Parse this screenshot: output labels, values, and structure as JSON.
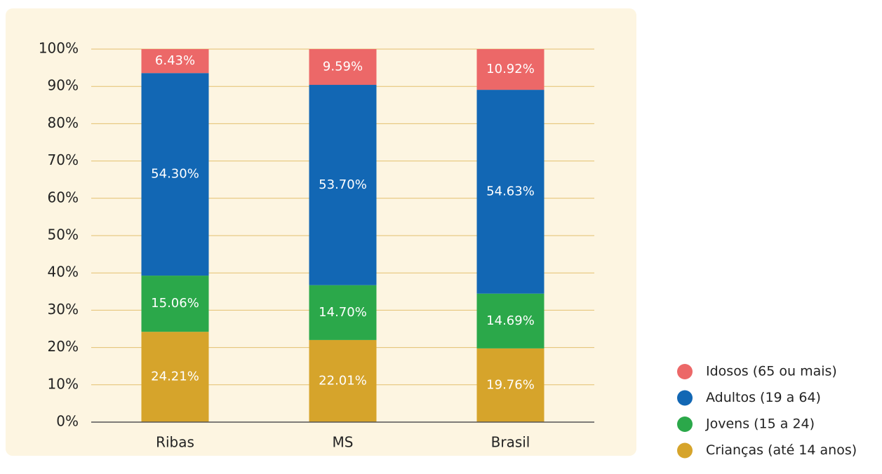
{
  "chart_data": {
    "type": "stacked_bar",
    "categories": [
      "Ribas",
      "MS",
      "Brasil"
    ],
    "series": [
      {
        "name": "Crianças (até 14 anos)",
        "color": "#d6a42b",
        "values": [
          24.21,
          22.01,
          19.76
        ],
        "value_labels": [
          "24.21%",
          "22.01%",
          "19.76%"
        ]
      },
      {
        "name": "Jovens (15 a 24)",
        "color": "#2ba84a",
        "values": [
          15.06,
          14.7,
          14.69
        ],
        "value_labels": [
          "15.06%",
          "14.70%",
          "14.69%"
        ]
      },
      {
        "name": "Adultos (19 a 64)",
        "color": "#1267b4",
        "values": [
          54.3,
          53.7,
          54.63
        ],
        "value_labels": [
          "54.30%",
          "53.70%",
          "54.63%"
        ]
      },
      {
        "name": "Idosos (65 ou mais)",
        "color": "#ec6868",
        "values": [
          6.43,
          9.59,
          10.92
        ],
        "value_labels": [
          "6.43%",
          "9.59%",
          "10.92%"
        ]
      }
    ],
    "ylim": [
      0,
      100
    ],
    "yticks": [
      {
        "value": 0,
        "label": "0%"
      },
      {
        "value": 10,
        "label": "10%"
      },
      {
        "value": 20,
        "label": "20%"
      },
      {
        "value": 30,
        "label": "30%"
      },
      {
        "value": 40,
        "label": "40%"
      },
      {
        "value": 50,
        "label": "50%"
      },
      {
        "value": 60,
        "label": "60%"
      },
      {
        "value": 70,
        "label": "70%"
      },
      {
        "value": 80,
        "label": "80%"
      },
      {
        "value": 90,
        "label": "90%"
      },
      {
        "value": 100,
        "label": "100%"
      }
    ],
    "grid": true,
    "legend": "bottom-right"
  }
}
